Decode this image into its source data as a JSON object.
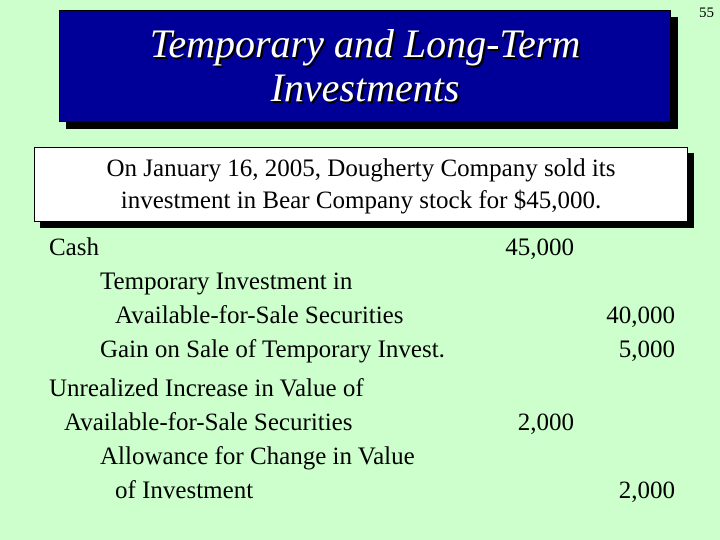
{
  "page_number": "55",
  "title": {
    "line1": "Temporary and Long-Term",
    "line2": "Investments"
  },
  "callout": {
    "line1": "On January 16, 2005, Dougherty Company sold its",
    "line2": "investment in Bear Company stock for $45,000."
  },
  "journal": {
    "lines": [
      {
        "account": "Cash",
        "debit": "45,000",
        "credit": ""
      },
      {
        "account": "Temporary Investment in",
        "debit": "",
        "credit": ""
      },
      {
        "account": "Available-for-Sale Securities",
        "debit": "",
        "credit": "40,000"
      },
      {
        "account": "Gain on Sale of Temporary Invest.",
        "debit": "",
        "credit": "5,000"
      },
      {
        "account": "Unrealized Increase in Value of",
        "debit": "",
        "credit": ""
      },
      {
        "account": "Available-for-Sale Securities",
        "debit": "2,000",
        "credit": ""
      },
      {
        "account": "Allowance for Change in Value",
        "debit": "",
        "credit": ""
      },
      {
        "account": "of Investment",
        "debit": "",
        "credit": "2,000"
      }
    ]
  },
  "colors": {
    "background": "#ccffcc",
    "title_box": "#000099",
    "title_text": "#ffffff",
    "callout_box": "#ffffff"
  }
}
